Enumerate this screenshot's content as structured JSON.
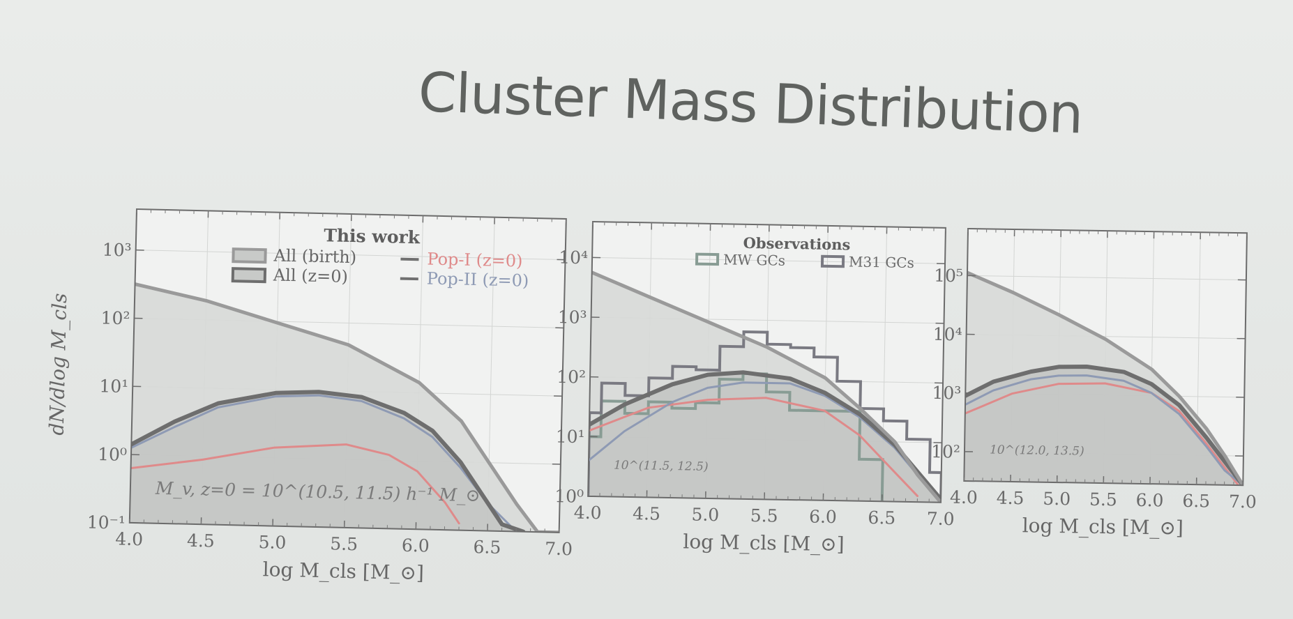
{
  "slide": {
    "title": "Cluster Mass Distribution"
  },
  "colors": {
    "birth": "#9a9a9a",
    "z0": "#6e6e6e",
    "pop1": "#df8a8a",
    "pop2": "#8e9ab4",
    "mw": "#889c94",
    "m31": "#7a7a82"
  },
  "chart_data": [
    {
      "type": "line",
      "title": "",
      "xlabel": "log M_cls [M_⊙]",
      "ylabel": "dN/dlog M_cls",
      "xlim": [
        4.0,
        7.0
      ],
      "ylog": true,
      "ylim_exp": [
        -1,
        3.6
      ],
      "xticks": [
        "4.0",
        "4.5",
        "5.0",
        "5.5",
        "6.0",
        "6.5",
        "7.0"
      ],
      "yticks": [
        {
          "exp": -1,
          "label": "10⁻¹"
        },
        {
          "exp": 0,
          "label": "10⁰"
        },
        {
          "exp": 1,
          "label": "10¹"
        },
        {
          "exp": 2,
          "label": "10²"
        },
        {
          "exp": 3,
          "label": "10³"
        }
      ],
      "legend_title": "This work",
      "legend": [
        "All (birth)",
        "All (z=0)",
        "Pop-I (z=0)",
        "Pop-II (z=0)"
      ],
      "annotation": "M_v, z=0 = 10^(10.5, 11.5) h⁻¹ M_⊙",
      "series": [
        {
          "name": "All (birth)",
          "x": [
            4.0,
            4.5,
            5.0,
            5.5,
            6.0,
            6.3,
            6.5,
            6.7,
            6.85,
            7.0
          ],
          "y": [
            2.5,
            2.28,
            1.98,
            1.68,
            1.15,
            0.6,
            0.0,
            -0.6,
            -1.0,
            -1.3
          ]
        },
        {
          "name": "All (z=0)",
          "x": [
            4.0,
            4.3,
            4.6,
            5.0,
            5.3,
            5.6,
            5.9,
            6.1,
            6.3,
            6.45,
            6.6,
            6.75
          ],
          "y": [
            0.15,
            0.5,
            0.78,
            0.95,
            0.98,
            0.92,
            0.7,
            0.45,
            0.0,
            -0.45,
            -0.9,
            -1.3
          ]
        },
        {
          "name": "Pop-I (z=0)",
          "x": [
            4.0,
            4.5,
            5.0,
            5.5,
            5.8,
            6.0,
            6.2,
            6.3
          ],
          "y": [
            -0.2,
            -0.05,
            0.15,
            0.22,
            0.08,
            -0.15,
            -0.6,
            -0.9
          ]
        },
        {
          "name": "Pop-II (z=0)",
          "x": [
            4.0,
            4.3,
            4.6,
            5.0,
            5.3,
            5.6,
            5.9,
            6.1,
            6.3,
            6.5,
            6.7
          ],
          "y": [
            0.1,
            0.42,
            0.72,
            0.9,
            0.93,
            0.86,
            0.62,
            0.36,
            -0.08,
            -0.6,
            -1.1
          ]
        }
      ]
    },
    {
      "type": "line",
      "title": "",
      "xlabel": "log M_cls [M_⊙]",
      "ylabel": "",
      "xlim": [
        4.0,
        7.0
      ],
      "ylog": true,
      "ylim_exp": [
        0,
        4.6
      ],
      "xticks": [
        "4.0",
        "4.5",
        "5.0",
        "5.5",
        "6.0",
        "6.5",
        "7.0"
      ],
      "yticks": [
        {
          "exp": 0,
          "label": "10⁰"
        },
        {
          "exp": 1,
          "label": "10¹"
        },
        {
          "exp": 2,
          "label": "10²"
        },
        {
          "exp": 3,
          "label": "10³"
        },
        {
          "exp": 4,
          "label": "10⁴"
        }
      ],
      "legend_title": "Observations",
      "legend": [
        "MW GCs",
        "M31 GCs"
      ],
      "annotation": "10^(11.5, 12.5)",
      "series": [
        {
          "name": "All (birth)",
          "x": [
            4.0,
            4.5,
            5.0,
            5.5,
            6.0,
            6.3,
            6.6,
            6.8,
            7.0
          ],
          "y": [
            3.75,
            3.35,
            2.95,
            2.55,
            2.05,
            1.55,
            1.0,
            0.45,
            0.0
          ]
        },
        {
          "name": "All (z=0)",
          "x": [
            4.0,
            4.3,
            4.7,
            5.0,
            5.3,
            5.7,
            6.0,
            6.3,
            6.6,
            6.8,
            7.0
          ],
          "y": [
            1.2,
            1.55,
            1.9,
            2.07,
            2.12,
            2.03,
            1.8,
            1.45,
            0.95,
            0.5,
            0.05
          ]
        },
        {
          "name": "Pop-I (z=0)",
          "x": [
            4.0,
            4.5,
            5.0,
            5.5,
            6.0,
            6.3,
            6.6,
            6.8
          ],
          "y": [
            1.1,
            1.5,
            1.65,
            1.7,
            1.5,
            1.1,
            0.5,
            0.1
          ]
        },
        {
          "name": "Pop-II (z=0)",
          "x": [
            4.0,
            4.3,
            4.7,
            5.0,
            5.3,
            5.7,
            6.0,
            6.3,
            6.6,
            6.8,
            6.95
          ],
          "y": [
            0.6,
            1.1,
            1.6,
            1.85,
            1.95,
            1.95,
            1.75,
            1.4,
            0.9,
            0.45,
            0.1
          ]
        }
      ],
      "histograms": [
        {
          "name": "MW GCs",
          "edges": [
            4.0,
            4.1,
            4.3,
            4.5,
            4.7,
            4.9,
            5.1,
            5.3,
            5.5,
            5.7,
            5.9,
            6.1,
            6.3,
            6.5
          ],
          "heights": [
            1.0,
            1.6,
            1.4,
            1.6,
            1.5,
            1.6,
            2.0,
            2.1,
            1.8,
            1.5,
            1.5,
            1.5,
            0.7
          ]
        },
        {
          "name": "M31 GCs",
          "edges": [
            4.0,
            4.1,
            4.3,
            4.5,
            4.7,
            4.9,
            5.1,
            5.3,
            5.5,
            5.7,
            5.9,
            6.1,
            6.3,
            6.5,
            6.7,
            6.9,
            7.0
          ],
          "heights": [
            1.4,
            1.9,
            1.7,
            2.0,
            2.2,
            2.15,
            2.55,
            2.8,
            2.6,
            2.55,
            2.4,
            2.0,
            1.55,
            1.35,
            1.05,
            0.5
          ]
        }
      ]
    },
    {
      "type": "line",
      "title": "",
      "xlabel": "log M_cls [M_⊙]",
      "ylabel": "",
      "xlim": [
        4.0,
        7.0
      ],
      "ylog": true,
      "ylim_exp": [
        1.5,
        5.8
      ],
      "xticks": [
        "4.0",
        "4.5",
        "5.0",
        "5.5",
        "6.0",
        "6.5",
        "7.0"
      ],
      "yticks": [
        {
          "exp": 2,
          "label": "10²"
        },
        {
          "exp": 3,
          "label": "10³"
        },
        {
          "exp": 4,
          "label": "10⁴"
        },
        {
          "exp": 5,
          "label": "10⁵"
        }
      ],
      "annotation": "10^(12.0, 13.5)",
      "series": [
        {
          "name": "All (birth)",
          "x": [
            4.0,
            4.5,
            5.0,
            5.5,
            6.0,
            6.3,
            6.6,
            6.8,
            7.0
          ],
          "y": [
            5.05,
            4.72,
            4.35,
            3.95,
            3.45,
            3.0,
            2.45,
            2.0,
            1.5
          ]
        },
        {
          "name": "All (z=0)",
          "x": [
            4.0,
            4.3,
            4.7,
            5.0,
            5.3,
            5.7,
            6.0,
            6.3,
            6.6,
            6.8,
            7.0
          ],
          "y": [
            2.95,
            3.2,
            3.38,
            3.47,
            3.48,
            3.4,
            3.2,
            2.85,
            2.3,
            1.9,
            1.5
          ]
        },
        {
          "name": "Pop-I (z=0)",
          "x": [
            4.0,
            4.5,
            5.0,
            5.5,
            6.0,
            6.3,
            6.6,
            6.8,
            6.95
          ],
          "y": [
            2.65,
            3.0,
            3.18,
            3.2,
            3.05,
            2.75,
            2.2,
            1.8,
            1.5
          ]
        },
        {
          "name": "Pop-II (z=0)",
          "x": [
            4.0,
            4.3,
            4.7,
            5.0,
            5.3,
            5.7,
            6.0,
            6.3,
            6.6,
            6.8,
            7.0
          ],
          "y": [
            2.8,
            3.05,
            3.25,
            3.32,
            3.33,
            3.25,
            3.05,
            2.7,
            2.15,
            1.75,
            1.45
          ]
        }
      ]
    }
  ]
}
